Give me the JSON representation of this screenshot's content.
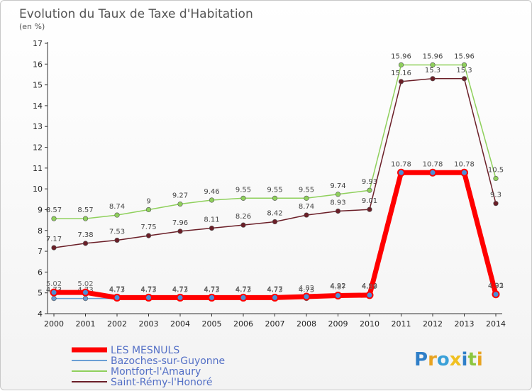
{
  "chart_data": {
    "type": "line",
    "title": "Evolution du Taux de Taxe d'Habitation",
    "subtitle": "(en %)",
    "xlabel": "",
    "ylabel": "",
    "ylim": [
      4,
      17
    ],
    "yticks": [
      "4",
      "5",
      "6",
      "7",
      "8",
      "9",
      "10",
      "11",
      "12",
      "13",
      "14",
      "15",
      "16",
      "17"
    ],
    "categories": [
      "2000",
      "2001",
      "2002",
      "2003",
      "2004",
      "2005",
      "2006",
      "2007",
      "2008",
      "2009",
      "2010",
      "2011",
      "2012",
      "2013",
      "2014"
    ],
    "grid": false,
    "legend_position": "bottom-left",
    "series": [
      {
        "name": "LES MESNULS",
        "color": "#ff0000",
        "values": [
          5.02,
          5.02,
          4.77,
          4.77,
          4.77,
          4.77,
          4.77,
          4.77,
          4.82,
          4.87,
          4.89,
          10.78,
          10.78,
          10.78,
          4.93
        ],
        "labels": [
          "5.02",
          "5.02",
          "4.77",
          "4.77",
          "4.77",
          "4.77",
          "4.77",
          "4.77",
          "4.82",
          "4.87",
          "4.89",
          "10.78",
          "10.78",
          "10.78",
          "4.93"
        ]
      },
      {
        "name": "Bazoches-sur-Guyonne",
        "color": "#6a9fd4",
        "values": [
          4.73,
          4.73,
          4.73,
          4.73,
          4.73,
          4.73,
          4.73,
          4.73,
          4.73,
          4.92,
          4.92,
          10.78,
          10.78,
          10.78,
          4.92
        ],
        "labels": [
          "4.73",
          "4.73",
          "4.73",
          "4.73",
          "4.73",
          "4.73",
          "4.73",
          "4.73",
          "4.73",
          "4.92",
          "4.92",
          "10.78",
          "10.78",
          "10.78",
          "4.92"
        ]
      },
      {
        "name": "Montfort-l'Amaury",
        "color": "#8fd05c",
        "values": [
          8.57,
          8.57,
          8.74,
          9,
          9.27,
          9.46,
          9.55,
          9.55,
          9.55,
          9.74,
          9.93,
          15.96,
          15.96,
          15.96,
          10.5
        ],
        "labels": [
          "8.57",
          "8.57",
          "8.74",
          "9",
          "9.27",
          "9.46",
          "9.55",
          "9.55",
          "9.55",
          "9.74",
          "9.93",
          "15.96",
          "15.96",
          "15.96",
          "10.5"
        ]
      },
      {
        "name": "Saint-Rémy-l'Honoré",
        "color": "#6b1f28",
        "values": [
          7.17,
          7.38,
          7.53,
          7.75,
          7.96,
          8.11,
          8.26,
          8.42,
          8.74,
          8.93,
          9.01,
          15.16,
          15.3,
          15.3,
          9.3
        ],
        "labels": [
          "7.17",
          "7.38",
          "7.53",
          "7.75",
          "7.96",
          "8.11",
          "8.26",
          "8.42",
          "8.74",
          "8.93",
          "9.01",
          "15.16",
          "15.3",
          "15.3",
          "9.3"
        ]
      }
    ]
  },
  "logo": {
    "letters": [
      "P",
      "r",
      "o",
      "x",
      "i",
      "t",
      "i"
    ],
    "colors": [
      "#2f7fc8",
      "#e8a320",
      "#3aa0d8",
      "#f0c020",
      "#2f7fc8",
      "#8cc63f",
      "#e8a320"
    ]
  }
}
